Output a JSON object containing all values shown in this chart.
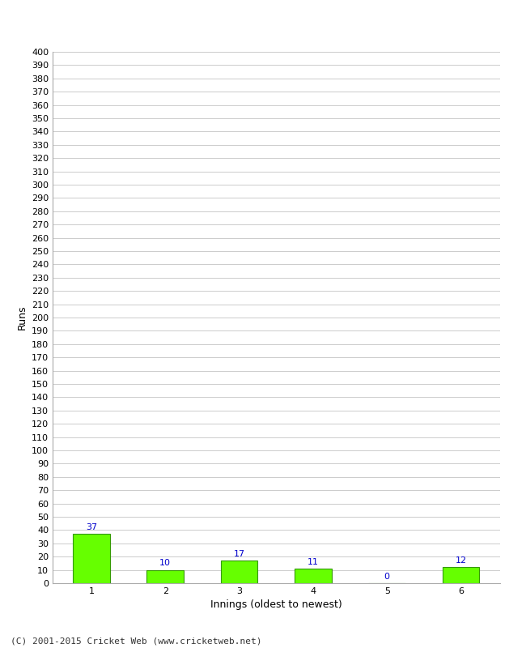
{
  "categories": [
    "1",
    "2",
    "3",
    "4",
    "5",
    "6"
  ],
  "values": [
    37,
    10,
    17,
    11,
    0,
    12
  ],
  "bar_color": "#66ff00",
  "bar_edge_color": "#339900",
  "ylabel": "Runs",
  "xlabel": "Innings (oldest to newest)",
  "ylim": [
    0,
    400
  ],
  "label_color": "#0000cc",
  "footer": "(C) 2001-2015 Cricket Web (www.cricketweb.net)",
  "background_color": "#ffffff",
  "grid_color": "#cccccc",
  "spine_color": "#aaaaaa",
  "tick_label_fontsize": 8,
  "axis_label_fontsize": 9,
  "footer_fontsize": 8
}
